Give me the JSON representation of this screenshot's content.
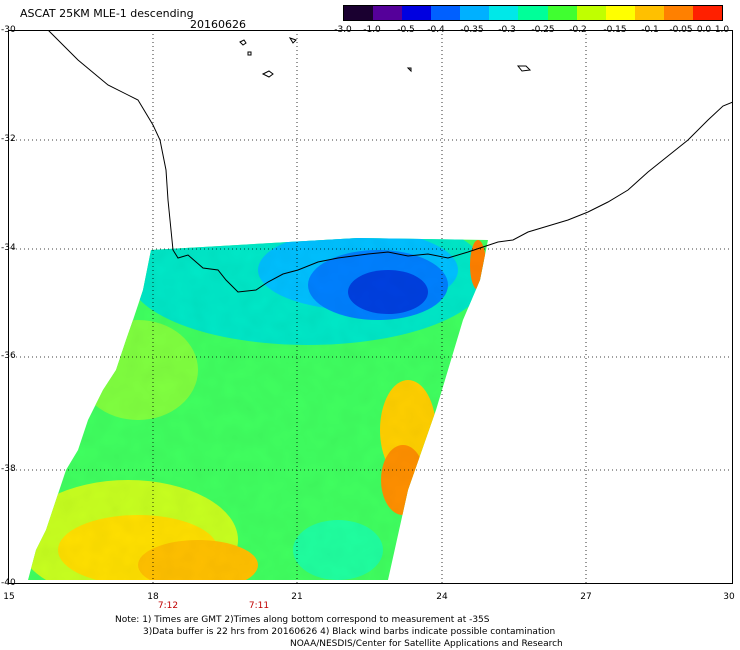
{
  "header": {
    "title": "ASCAT 25KM MLE-1 descending",
    "date": "20160626"
  },
  "colorbar": {
    "labels": [
      "-3.0",
      "-1.0",
      "-0.5",
      "-0.4",
      "-0.35",
      "-0.3",
      "-0.25",
      "-0.2",
      "-0.15",
      "-0.1",
      "-0.05",
      "0.0",
      "1.0"
    ],
    "colors": [
      "#1a0030",
      "#55009a",
      "#0000e0",
      "#0060ff",
      "#00b0ff",
      "#00e8e8",
      "#00ff99",
      "#40ff30",
      "#c0ff00",
      "#ffff00",
      "#ffc000",
      "#ff8000",
      "#ff2000"
    ]
  },
  "axes": {
    "lat_labels": [
      "-30",
      "-32",
      "-34",
      "-36",
      "-38",
      "-40"
    ],
    "lon_labels": [
      "15",
      "18",
      "21",
      "24",
      "27",
      "30"
    ]
  },
  "times": [
    "7:12",
    "7:11"
  ],
  "notes": [
    "Note: 1) Times are GMT 2)Times along bottom correspond to measurement at -35S",
    "3)Data buffer is 22 hrs from 20160626 4) Black wind barbs indicate possible contamination",
    "NOAA/NESDIS/Center for Satellite Applications and Research"
  ]
}
